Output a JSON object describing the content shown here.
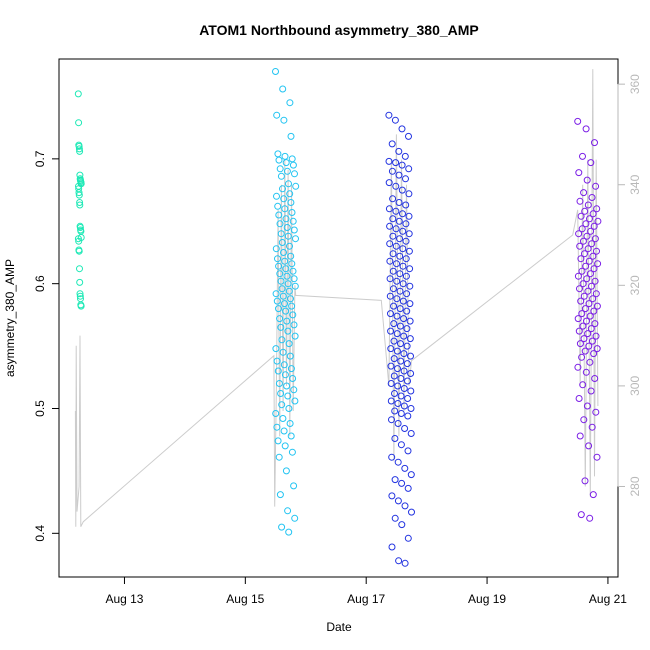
{
  "chart_data": {
    "type": "scatter",
    "title": "ATOM1 Northbound asymmetry_380_AMP",
    "xlabel": "Date",
    "ylabel": "asymmetry_380_AMP",
    "x_ticks": [
      "Aug 13",
      "Aug 15",
      "Aug 17",
      "Aug 19",
      "Aug 21"
    ],
    "y_ticks": [
      0.4,
      0.5,
      0.6,
      0.7
    ],
    "y_right_ticks": [
      280,
      300,
      320,
      340,
      360
    ],
    "xlim": [
      "2023-08-11T22:00",
      "2023-08-21T04:00"
    ],
    "ylim": [
      0.365,
      0.78
    ],
    "y_right_lim": [
      262,
      365
    ],
    "grid": false,
    "legend": "none",
    "series": [
      {
        "color": "#1de9b6",
        "x_start": "2023-08-12T05:40",
        "x_end": "2023-08-12T06:50",
        "values": [
          0.752,
          0.729,
          0.711,
          0.71,
          0.708,
          0.706,
          0.687,
          0.684,
          0.683,
          0.682,
          0.681,
          0.68,
          0.678,
          0.676,
          0.673,
          0.671,
          0.665,
          0.663,
          0.646,
          0.645,
          0.643,
          0.642,
          0.637,
          0.636,
          0.634,
          0.627,
          0.626,
          0.612,
          0.601,
          0.592,
          0.59,
          0.588,
          0.583,
          0.582
        ]
      },
      {
        "color": "#22c4f2",
        "x_start": "2023-08-15T12:00",
        "x_end": "2023-08-15T20:00",
        "values": [
          0.77,
          0.756,
          0.745,
          0.735,
          0.731,
          0.718,
          0.704,
          0.702,
          0.7,
          0.699,
          0.697,
          0.695,
          0.692,
          0.69,
          0.688,
          0.686,
          0.68,
          0.678,
          0.676,
          0.672,
          0.67,
          0.668,
          0.665,
          0.662,
          0.66,
          0.657,
          0.655,
          0.652,
          0.65,
          0.648,
          0.645,
          0.643,
          0.64,
          0.638,
          0.636,
          0.633,
          0.63,
          0.628,
          0.625,
          0.622,
          0.62,
          0.618,
          0.616,
          0.614,
          0.612,
          0.61,
          0.608,
          0.606,
          0.604,
          0.602,
          0.6,
          0.598,
          0.596,
          0.594,
          0.592,
          0.59,
          0.588,
          0.586,
          0.584,
          0.582,
          0.58,
          0.578,
          0.575,
          0.572,
          0.57,
          0.567,
          0.565,
          0.562,
          0.558,
          0.555,
          0.552,
          0.548,
          0.545,
          0.542,
          0.538,
          0.535,
          0.532,
          0.53,
          0.527,
          0.524,
          0.52,
          0.518,
          0.515,
          0.512,
          0.51,
          0.506,
          0.503,
          0.5,
          0.496,
          0.492,
          0.488,
          0.485,
          0.482,
          0.478,
          0.474,
          0.47,
          0.465,
          0.461,
          0.45,
          0.438,
          0.431,
          0.418,
          0.412,
          0.405,
          0.401
        ]
      },
      {
        "color": "#2233e0",
        "x_start": "2023-08-17T09:00",
        "x_end": "2023-08-17T18:00",
        "values": [
          0.735,
          0.731,
          0.724,
          0.718,
          0.712,
          0.706,
          0.702,
          0.698,
          0.697,
          0.695,
          0.692,
          0.69,
          0.687,
          0.684,
          0.681,
          0.678,
          0.675,
          0.672,
          0.668,
          0.665,
          0.663,
          0.66,
          0.658,
          0.656,
          0.654,
          0.652,
          0.65,
          0.648,
          0.646,
          0.644,
          0.642,
          0.64,
          0.638,
          0.636,
          0.634,
          0.632,
          0.63,
          0.628,
          0.626,
          0.624,
          0.622,
          0.62,
          0.618,
          0.616,
          0.614,
          0.612,
          0.61,
          0.608,
          0.606,
          0.604,
          0.602,
          0.6,
          0.598,
          0.596,
          0.594,
          0.592,
          0.59,
          0.588,
          0.586,
          0.584,
          0.582,
          0.58,
          0.578,
          0.576,
          0.574,
          0.572,
          0.57,
          0.568,
          0.566,
          0.564,
          0.562,
          0.56,
          0.558,
          0.556,
          0.554,
          0.552,
          0.55,
          0.548,
          0.546,
          0.544,
          0.542,
          0.54,
          0.538,
          0.536,
          0.534,
          0.532,
          0.53,
          0.528,
          0.526,
          0.524,
          0.522,
          0.52,
          0.518,
          0.516,
          0.514,
          0.512,
          0.51,
          0.508,
          0.506,
          0.504,
          0.502,
          0.5,
          0.498,
          0.496,
          0.494,
          0.491,
          0.488,
          0.484,
          0.48,
          0.476,
          0.471,
          0.466,
          0.461,
          0.457,
          0.452,
          0.447,
          0.443,
          0.44,
          0.436,
          0.43,
          0.426,
          0.422,
          0.417,
          0.412,
          0.407,
          0.396,
          0.389,
          0.378,
          0.376
        ]
      },
      {
        "color": "#7b1fe6",
        "x_start": "2023-08-20T12:00",
        "x_end": "2023-08-20T20:00",
        "values": [
          0.73,
          0.724,
          0.713,
          0.702,
          0.697,
          0.689,
          0.683,
          0.678,
          0.673,
          0.669,
          0.666,
          0.663,
          0.66,
          0.658,
          0.656,
          0.654,
          0.652,
          0.65,
          0.648,
          0.646,
          0.644,
          0.642,
          0.64,
          0.638,
          0.636,
          0.634,
          0.632,
          0.63,
          0.628,
          0.626,
          0.624,
          0.622,
          0.62,
          0.618,
          0.616,
          0.614,
          0.612,
          0.61,
          0.608,
          0.606,
          0.604,
          0.602,
          0.6,
          0.598,
          0.596,
          0.594,
          0.592,
          0.59,
          0.588,
          0.586,
          0.584,
          0.582,
          0.58,
          0.578,
          0.576,
          0.574,
          0.572,
          0.57,
          0.568,
          0.566,
          0.564,
          0.562,
          0.56,
          0.558,
          0.556,
          0.554,
          0.552,
          0.55,
          0.548,
          0.546,
          0.544,
          0.541,
          0.537,
          0.533,
          0.529,
          0.524,
          0.519,
          0.514,
          0.508,
          0.502,
          0.497,
          0.491,
          0.485,
          0.478,
          0.47,
          0.461,
          0.442,
          0.431,
          0.415,
          0.412
        ]
      }
    ],
    "secondary_line": {
      "color": "#cccccc",
      "axis": "right",
      "points": [
        [
          "2023-08-12T04:30",
          295
        ],
        [
          "2023-08-12T04:40",
          272
        ],
        [
          "2023-08-12T04:50",
          308
        ],
        [
          "2023-08-12T05:10",
          275
        ],
        [
          "2023-08-12T06:00",
          280
        ],
        [
          "2023-08-12T06:20",
          310
        ],
        [
          "2023-08-12T06:40",
          272
        ],
        [
          "2023-08-12T07:40",
          273
        ],
        [
          "2023-08-15T11:20",
          306
        ],
        [
          "2023-08-15T11:40",
          276
        ],
        [
          "2023-08-15T12:20",
          300
        ],
        [
          "2023-08-15T13:00",
          335
        ],
        [
          "2023-08-15T13:40",
          290
        ],
        [
          "2023-08-15T14:20",
          340
        ],
        [
          "2023-08-15T15:00",
          295
        ],
        [
          "2023-08-15T15:40",
          345
        ],
        [
          "2023-08-15T16:20",
          300
        ],
        [
          "2023-08-15T17:00",
          343
        ],
        [
          "2023-08-15T17:40",
          290
        ],
        [
          "2023-08-15T18:20",
          340
        ],
        [
          "2023-08-15T19:00",
          295
        ],
        [
          "2023-08-15T19:40",
          320
        ],
        [
          "2023-08-15T20:00",
          318
        ],
        [
          "2023-08-17T06:00",
          317
        ],
        [
          "2023-08-17T09:00",
          300
        ],
        [
          "2023-08-17T10:00",
          345
        ],
        [
          "2023-08-17T11:00",
          285
        ],
        [
          "2023-08-17T12:00",
          350
        ],
        [
          "2023-08-17T13:00",
          290
        ],
        [
          "2023-08-17T14:00",
          345
        ],
        [
          "2023-08-17T15:00",
          295
        ],
        [
          "2023-08-17T16:00",
          340
        ],
        [
          "2023-08-17T17:00",
          300
        ],
        [
          "2023-08-17T18:00",
          305
        ],
        [
          "2023-08-20T10:00",
          330
        ],
        [
          "2023-08-20T12:00",
          335
        ],
        [
          "2023-08-20T13:00",
          300
        ],
        [
          "2023-08-20T14:00",
          340
        ],
        [
          "2023-08-20T15:00",
          280
        ],
        [
          "2023-08-20T16:00",
          345
        ],
        [
          "2023-08-20T17:00",
          278
        ],
        [
          "2023-08-20T18:00",
          363
        ],
        [
          "2023-08-20T18:40",
          282
        ],
        [
          "2023-08-20T19:20",
          345
        ],
        [
          "2023-08-20T20:00",
          296
        ]
      ]
    }
  }
}
